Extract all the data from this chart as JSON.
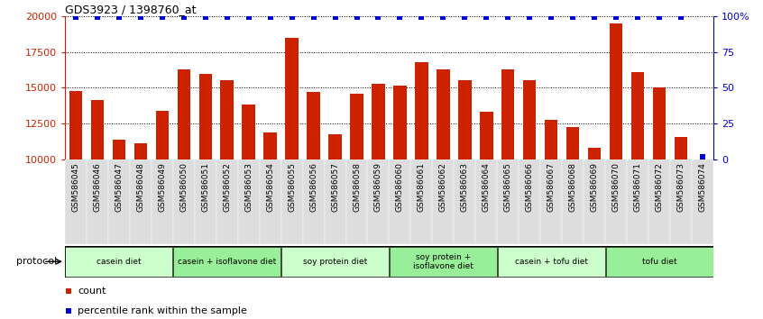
{
  "title": "GDS3923 / 1398760_at",
  "samples": [
    "GSM586045",
    "GSM586046",
    "GSM586047",
    "GSM586048",
    "GSM586049",
    "GSM586050",
    "GSM586051",
    "GSM586052",
    "GSM586053",
    "GSM586054",
    "GSM586055",
    "GSM586056",
    "GSM586057",
    "GSM586058",
    "GSM586059",
    "GSM586060",
    "GSM586061",
    "GSM586062",
    "GSM586063",
    "GSM586064",
    "GSM586065",
    "GSM586066",
    "GSM586067",
    "GSM586068",
    "GSM586069",
    "GSM586070",
    "GSM586071",
    "GSM586072",
    "GSM586073",
    "GSM586074"
  ],
  "counts": [
    14750,
    14150,
    11400,
    11150,
    13400,
    16250,
    15950,
    15500,
    13800,
    11900,
    18500,
    14700,
    11750,
    14600,
    15250,
    15150,
    16800,
    16250,
    15550,
    13350,
    16250,
    15550,
    12750,
    12250,
    10800,
    19500,
    16100,
    15050,
    11600,
    10000
  ],
  "percentile_ranks": [
    99,
    99,
    99,
    99,
    99,
    99,
    99,
    99,
    99,
    99,
    99,
    99,
    99,
    99,
    99,
    99,
    99,
    99,
    99,
    99,
    99,
    99,
    99,
    99,
    99,
    99,
    99,
    99,
    99,
    2
  ],
  "groups": [
    {
      "label": "casein diet",
      "start": 0,
      "end": 5,
      "color": "#ccffcc"
    },
    {
      "label": "casein + isoflavone diet",
      "start": 5,
      "end": 10,
      "color": "#99ee99"
    },
    {
      "label": "soy protein diet",
      "start": 10,
      "end": 15,
      "color": "#ccffcc"
    },
    {
      "label": "soy protein +\nisoflavone diet",
      "start": 15,
      "end": 20,
      "color": "#99ee99"
    },
    {
      "label": "casein + tofu diet",
      "start": 20,
      "end": 25,
      "color": "#ccffcc"
    },
    {
      "label": "tofu diet",
      "start": 25,
      "end": 30,
      "color": "#99ee99"
    }
  ],
  "bar_color": "#cc2200",
  "percentile_color": "#0000cc",
  "ymin": 10000,
  "ymax": 20000,
  "yticks": [
    10000,
    12500,
    15000,
    17500,
    20000
  ],
  "right_yticks": [
    0,
    25,
    50,
    75,
    100
  ],
  "right_yticklabels": [
    "0",
    "25",
    "50",
    "75",
    "100%"
  ],
  "protocol_label": "protocol",
  "legend_count_label": "count",
  "legend_percentile_label": "percentile rank within the sample",
  "tick_label_bg": "#dddddd",
  "bar_width": 0.6
}
